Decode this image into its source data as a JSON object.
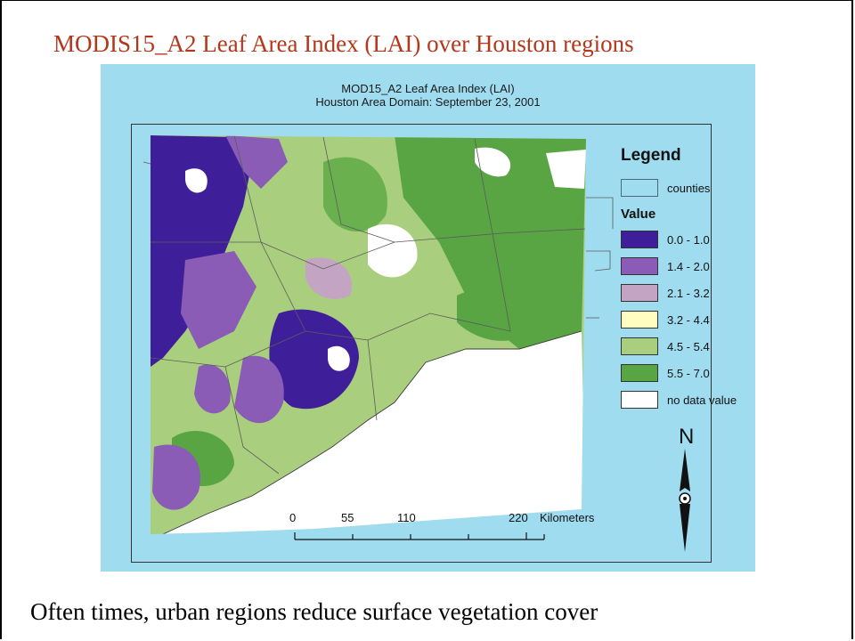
{
  "slide": {
    "title": "MODIS15_A2 Leaf Area Index (LAI) over Houston regions",
    "caption": "Often times, urban regions reduce surface vegetation cover"
  },
  "map": {
    "title_line1": "MOD15_A2  Leaf Area Index (LAI)",
    "title_line2": "Houston Area Domain: September 23, 2001",
    "background_color": "#9fdcf0",
    "legend": {
      "title": "Legend",
      "counties_label": "counties",
      "value_heading": "Value",
      "classes": [
        {
          "label": "0.0 - 1.0",
          "color": "#3f1f99"
        },
        {
          "label": "1.4 - 2.0",
          "color": "#8a5cb5"
        },
        {
          "label": "2.1 - 3.2",
          "color": "#c4a4c3"
        },
        {
          "label": "3.2 - 4.4",
          "color": "#fffdc0"
        },
        {
          "label": "4.5 - 5.4",
          "color": "#a9cf7e"
        },
        {
          "label": "5.5 - 7.0",
          "color": "#59a443"
        },
        {
          "label": "no data value",
          "color": "#ffffff"
        }
      ]
    },
    "scale_bar": {
      "ticks": [
        "0",
        "55",
        "110",
        "220"
      ],
      "unit": "Kilometers"
    },
    "north_arrow_label": "N"
  }
}
